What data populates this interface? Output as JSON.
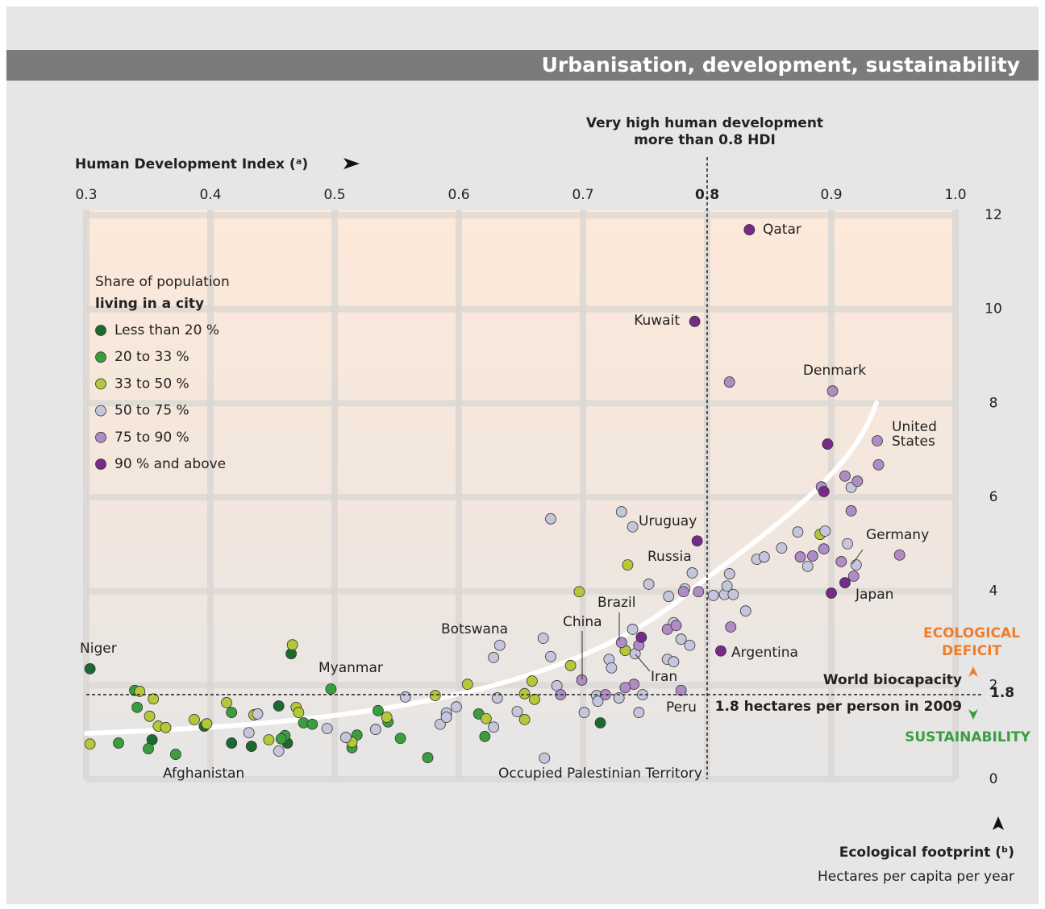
{
  "chart_data": {
    "type": "scatter",
    "title": "Urbanisation, development, sustainability",
    "x_label": "Human Development Index (ᵃ)",
    "y_label": "Ecological footprint (ᵇ)",
    "y_sublabel": "Hectares per capita per year",
    "legend_title": "Share of population",
    "legend_title_bold": "living in a city",
    "xlim": [
      0.3,
      1.0
    ],
    "xticks": [
      0.3,
      0.4,
      0.5,
      0.6,
      0.7,
      0.8,
      0.9,
      {
        "value": 1,
        "label": "1.0"
      }
    ],
    "ylim": [
      0,
      12
    ],
    "yticks": [
      0,
      2,
      4,
      6,
      8,
      10,
      12
    ],
    "grid": true,
    "threshold_x": {
      "value": 0.8,
      "label_lines": [
        "Very high human development",
        "more than 0.8 HDI"
      ]
    },
    "threshold_y": {
      "value": 1.8,
      "label": "World biocapacity",
      "sublabel": "1.8 hectares per person in 2009"
    },
    "deficit_label": [
      "ECOLOGICAL",
      "DEFICIT"
    ],
    "sustainability_label": "SUSTAINABILITY",
    "series": [
      {
        "name": "Less than 20 %",
        "color": "#1b6b31",
        "x": [
          0.303,
          0.465,
          0.455,
          0.395,
          0.417,
          0.433,
          0.353,
          0.462,
          0.714
        ],
        "values": [
          2.35,
          2.67,
          1.56,
          1.13,
          0.77,
          0.7,
          0.84,
          0.77,
          1.2
        ]
      },
      {
        "name": "20 to 33 %",
        "color": "#3a9e3f",
        "x": [
          0.339,
          0.341,
          0.35,
          0.372,
          0.326,
          0.417,
          0.46,
          0.457,
          0.475,
          0.482,
          0.497,
          0.514,
          0.518,
          0.535,
          0.543,
          0.553,
          0.575,
          0.616,
          0.621
        ],
        "values": [
          1.89,
          1.53,
          0.65,
          0.53,
          0.77,
          1.42,
          0.93,
          0.86,
          1.2,
          1.17,
          1.92,
          0.67,
          0.94,
          1.46,
          1.22,
          0.87,
          0.46,
          1.39,
          0.91
        ]
      },
      {
        "name": "33 to 50 %",
        "color": "#b5c83a",
        "x": [
          0.303,
          0.343,
          0.354,
          0.351,
          0.358,
          0.364,
          0.387,
          0.397,
          0.413,
          0.435,
          0.447,
          0.466,
          0.469,
          0.471,
          0.514,
          0.542,
          0.581,
          0.607,
          0.622,
          0.653,
          0.659,
          0.653,
          0.661,
          0.69,
          0.697,
          0.736,
          0.734,
          0.891
        ],
        "values": [
          0.75,
          1.87,
          1.71,
          1.34,
          1.13,
          1.1,
          1.27,
          1.18,
          1.63,
          1.37,
          0.84,
          2.86,
          1.53,
          1.42,
          0.79,
          1.32,
          1.78,
          2.02,
          1.29,
          1.82,
          2.09,
          1.27,
          1.7,
          2.42,
          3.99,
          4.56,
          2.74,
          5.21
        ]
      },
      {
        "name": "50 to 75 %",
        "color": "#c5c6dc",
        "x": [
          0.431,
          0.438,
          0.455,
          0.494,
          0.509,
          0.533,
          0.557,
          0.585,
          0.59,
          0.59,
          0.598,
          0.628,
          0.633,
          0.628,
          0.631,
          0.647,
          0.669,
          0.668,
          0.674,
          0.674,
          0.679,
          0.701,
          0.711,
          0.712,
          0.729,
          0.721,
          0.723,
          0.74,
          0.742,
          0.731,
          0.74,
          0.748,
          0.745,
          0.753,
          0.769,
          0.768,
          0.773,
          0.782,
          0.773,
          0.779,
          0.786,
          0.788,
          0.805,
          0.814,
          0.816,
          0.818,
          0.821,
          0.831,
          0.84,
          0.846,
          0.86,
          0.873,
          0.881,
          0.895,
          0.913,
          0.916,
          0.92
        ],
        "values": [
          0.99,
          1.39,
          0.6,
          1.08,
          0.89,
          1.06,
          1.75,
          1.17,
          1.41,
          1.32,
          1.54,
          2.59,
          2.85,
          1.11,
          1.73,
          1.44,
          0.45,
          3.0,
          5.54,
          2.61,
          1.99,
          1.42,
          1.78,
          1.66,
          1.73,
          2.55,
          2.37,
          3.19,
          2.67,
          5.69,
          5.37,
          1.8,
          1.42,
          4.15,
          3.89,
          2.55,
          2.5,
          4.05,
          3.33,
          2.98,
          2.85,
          4.39,
          3.91,
          3.93,
          4.11,
          4.37,
          3.93,
          3.58,
          4.68,
          4.73,
          4.92,
          5.26,
          4.53,
          5.28,
          5.01,
          6.21,
          4.56
        ]
      },
      {
        "name": "75 to 90 %",
        "color": "#b08cc6",
        "x": [
          0.682,
          0.699,
          0.718,
          0.741,
          0.731,
          0.745,
          0.768,
          0.775,
          0.734,
          0.779,
          0.781,
          0.793,
          0.818,
          0.819,
          0.901,
          0.937,
          0.938,
          0.911,
          0.921,
          0.916,
          0.892,
          0.875,
          0.885,
          0.894,
          0.908,
          0.918,
          0.955
        ],
        "values": [
          1.8,
          2.11,
          1.8,
          2.02,
          2.91,
          2.85,
          3.19,
          3.27,
          1.95,
          1.89,
          3.99,
          3.99,
          8.45,
          3.24,
          8.26,
          7.2,
          6.69,
          6.45,
          6.34,
          5.71,
          6.22,
          4.73,
          4.75,
          4.9,
          4.63,
          4.32,
          4.77
        ]
      },
      {
        "name": "90 % and above",
        "color": "#772a8a",
        "x": [
          0.834,
          0.79,
          0.897,
          0.894,
          0.792,
          0.747,
          0.811,
          0.9,
          0.911
        ],
        "values": [
          11.69,
          9.74,
          7.13,
          6.12,
          5.07,
          3.02,
          2.73,
          3.96,
          4.18
        ]
      }
    ],
    "annotations": [
      "Qatar",
      "Kuwait",
      "Denmark",
      "United States",
      "Uruguay",
      "Russia",
      "Germany",
      "Japan",
      "Brazil",
      "China",
      "Botswana",
      "Iran",
      "Argentina",
      "Peru",
      "Niger",
      "Myanmar",
      "Afghanistan",
      "Occupied Palestinian Territory"
    ]
  }
}
